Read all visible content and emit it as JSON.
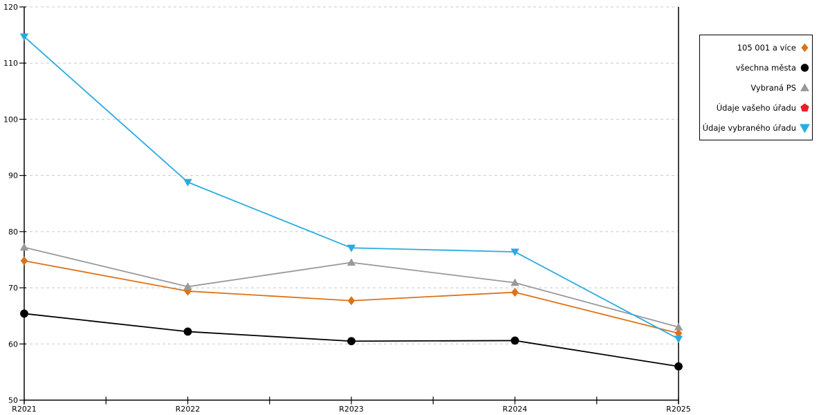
{
  "chart_data": {
    "type": "line",
    "x_categories": [
      "R2021",
      "R2022",
      "R2023",
      "R2024",
      "R2025"
    ],
    "yticks": [
      50,
      60,
      70,
      80,
      90,
      100,
      110,
      120
    ],
    "ylim": [
      50,
      120
    ],
    "grid": "horizontal dashed",
    "legend_position": "right-outside",
    "colors": {
      "grid": "#c8c8c8",
      "axis": "#000000",
      "text": "#000000",
      "legend_border": "#000000",
      "background": "#ffffff"
    },
    "series": [
      {
        "name": "105 001 a více",
        "marker": "diamond",
        "color": "#DD7217",
        "values": [
          74.8,
          69.4,
          67.7,
          69.2,
          61.9
        ]
      },
      {
        "name": "všechna města",
        "marker": "circle",
        "color": "#000000",
        "values": [
          65.4,
          62.2,
          60.5,
          60.6,
          56.0
        ]
      },
      {
        "name": "Vybraná PS",
        "marker": "triangle-up",
        "color": "#999999",
        "values": [
          77.2,
          70.2,
          74.5,
          70.9,
          63.0
        ]
      },
      {
        "name": "Údaje vašeho úřadu",
        "marker": "pentagon",
        "color": "#EE1C25",
        "values": []
      },
      {
        "name": "Údaje vybraného úřadu",
        "marker": "triangle-down",
        "color": "#29ABE2",
        "values": [
          114.7,
          88.8,
          77.1,
          76.4,
          60.9
        ]
      }
    ]
  }
}
